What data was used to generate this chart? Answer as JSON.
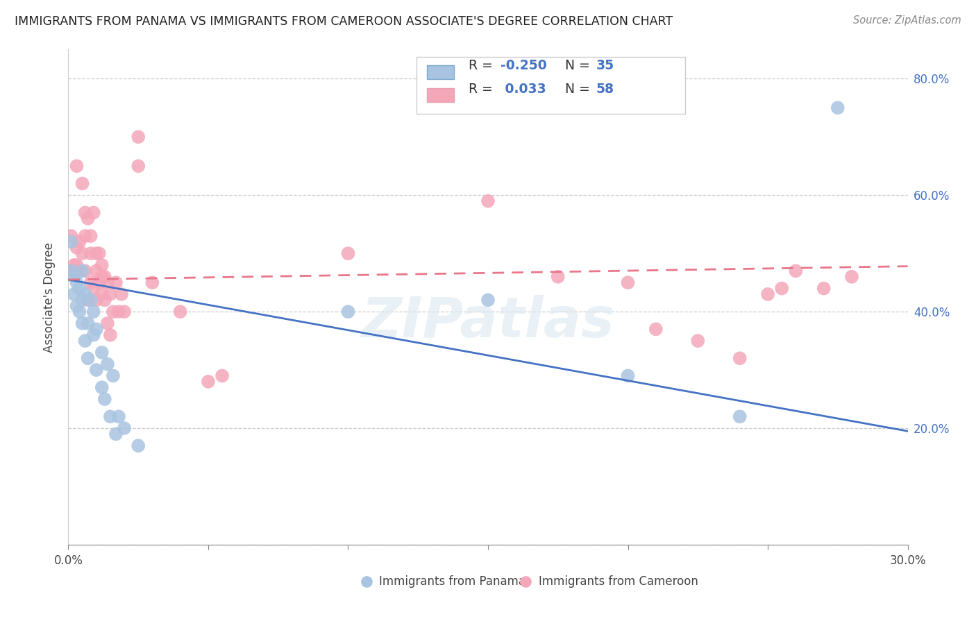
{
  "title": "IMMIGRANTS FROM PANAMA VS IMMIGRANTS FROM CAMEROON ASSOCIATE'S DEGREE CORRELATION CHART",
  "source": "Source: ZipAtlas.com",
  "xlabel_panama": "Immigrants from Panama",
  "xlabel_cameroon": "Immigrants from Cameroon",
  "ylabel": "Associate's Degree",
  "xlim": [
    0.0,
    0.3
  ],
  "ylim": [
    0.0,
    0.85
  ],
  "R_panama": -0.25,
  "N_panama": 35,
  "R_cameroon": 0.033,
  "N_cameroon": 58,
  "panama_color": "#a8c4e0",
  "cameroon_color": "#f4a7b9",
  "panama_line_color": "#4472c4",
  "cameroon_line_color": "#e8758a",
  "watermark": "ZIPatlas",
  "panama_x": [
    0.001,
    0.001,
    0.002,
    0.002,
    0.003,
    0.003,
    0.004,
    0.004,
    0.005,
    0.005,
    0.005,
    0.006,
    0.006,
    0.007,
    0.007,
    0.008,
    0.009,
    0.009,
    0.01,
    0.01,
    0.012,
    0.012,
    0.013,
    0.014,
    0.015,
    0.016,
    0.017,
    0.018,
    0.02,
    0.025,
    0.1,
    0.15,
    0.2,
    0.24,
    0.275
  ],
  "panama_y": [
    0.47,
    0.52,
    0.46,
    0.43,
    0.41,
    0.45,
    0.4,
    0.44,
    0.38,
    0.42,
    0.47,
    0.35,
    0.43,
    0.32,
    0.38,
    0.42,
    0.36,
    0.4,
    0.3,
    0.37,
    0.27,
    0.33,
    0.25,
    0.31,
    0.22,
    0.29,
    0.19,
    0.22,
    0.2,
    0.17,
    0.4,
    0.42,
    0.29,
    0.22,
    0.75
  ],
  "cameroon_x": [
    0.001,
    0.001,
    0.002,
    0.002,
    0.003,
    0.003,
    0.003,
    0.004,
    0.004,
    0.005,
    0.005,
    0.006,
    0.006,
    0.006,
    0.007,
    0.007,
    0.008,
    0.008,
    0.008,
    0.009,
    0.009,
    0.01,
    0.01,
    0.01,
    0.011,
    0.011,
    0.012,
    0.012,
    0.012,
    0.013,
    0.013,
    0.014,
    0.014,
    0.015,
    0.015,
    0.016,
    0.017,
    0.018,
    0.019,
    0.02,
    0.025,
    0.025,
    0.03,
    0.04,
    0.05,
    0.055,
    0.1,
    0.15,
    0.175,
    0.2,
    0.21,
    0.225,
    0.24,
    0.25,
    0.255,
    0.26,
    0.27,
    0.28
  ],
  "cameroon_y": [
    0.47,
    0.53,
    0.47,
    0.48,
    0.48,
    0.51,
    0.65,
    0.47,
    0.52,
    0.5,
    0.62,
    0.47,
    0.53,
    0.57,
    0.42,
    0.56,
    0.45,
    0.5,
    0.53,
    0.44,
    0.57,
    0.42,
    0.47,
    0.5,
    0.45,
    0.5,
    0.43,
    0.46,
    0.48,
    0.42,
    0.46,
    0.38,
    0.45,
    0.36,
    0.43,
    0.4,
    0.45,
    0.4,
    0.43,
    0.4,
    0.65,
    0.7,
    0.45,
    0.4,
    0.28,
    0.29,
    0.5,
    0.59,
    0.46,
    0.45,
    0.37,
    0.35,
    0.32,
    0.43,
    0.44,
    0.47,
    0.44,
    0.46
  ]
}
